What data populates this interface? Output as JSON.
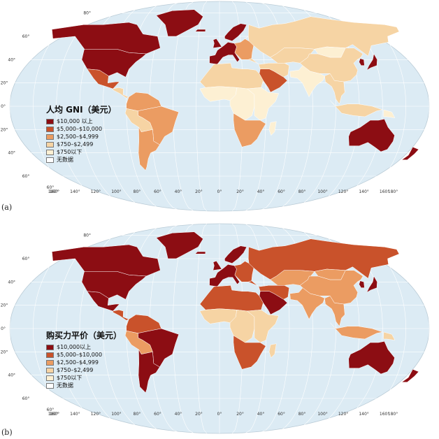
{
  "colors": {
    "ocean": "#dcebf4",
    "graticule": "#ffffff",
    "border": "#ffffff",
    "c10000": "#8c0d13",
    "c5000": "#c9522b",
    "c2500": "#eb9c62",
    "c750": "#f6d4a4",
    "clow": "#fdf0d3",
    "nodata": "#ffffff"
  },
  "panels": [
    {
      "id": "a",
      "label": "(a)",
      "legend_title": "人均 GNI（美元）",
      "legend": [
        {
          "label": "$10,000 以上",
          "color": "#8c0d13"
        },
        {
          "label": "$5,000–$10,000",
          "color": "#c9522b"
        },
        {
          "label": "$2,500–$4,999",
          "color": "#eb9c62"
        },
        {
          "label": "$750–$2,499",
          "color": "#f6d4a4"
        },
        {
          "label": "$750以下",
          "color": "#fdf0d3"
        },
        {
          "label": "无数据",
          "color": "#ffffff"
        }
      ],
      "regions": {
        "canada": "#8c0d13",
        "usa": "#8c0d13",
        "mexico": "#c9522b",
        "central_america": "#f6d4a4",
        "greenland": "#8c0d13",
        "south_america_north": "#eb9c62",
        "brazil": "#eb9c62",
        "peru_bolivia": "#f6d4a4",
        "argentina_chile": "#eb9c62",
        "iceland": "#8c0d13",
        "uk": "#8c0d13",
        "scandinavia": "#8c0d13",
        "western_europe": "#8c0d13",
        "eastern_europe": "#eb9c62",
        "russia": "#f6d4a4",
        "central_asia": "#f6d4a4",
        "middle_east": "#f6d4a4",
        "arabia": "#c9522b",
        "north_africa": "#f6d4a4",
        "west_africa": "#fdf0d3",
        "central_africa": "#fdf0d3",
        "east_africa": "#fdf0d3",
        "southern_africa": "#eb9c62",
        "madagascar": "#fdf0d3",
        "india": "#fdf0d3",
        "china": "#f6d4a4",
        "mongolia": "#fdf0d3",
        "southeast_asia": "#f6d4a4",
        "indonesia": "#f6d4a4",
        "japan": "#8c0d13",
        "korea": "#8c0d13",
        "australia": "#8c0d13",
        "new_zealand": "#8c0d13",
        "png": "#fdf0d3"
      }
    },
    {
      "id": "b",
      "label": "(b)",
      "legend_title": "购买力平价（美元）",
      "legend": [
        {
          "label": "$10,000以上",
          "color": "#8c0d13"
        },
        {
          "label": "$5,000–$10,000",
          "color": "#c9522b"
        },
        {
          "label": "$2,500–$4,999",
          "color": "#eb9c62"
        },
        {
          "label": "$750–$2,499",
          "color": "#f6d4a4"
        },
        {
          "label": "$750以下",
          "color": "#fdf0d3"
        },
        {
          "label": "无数据",
          "color": "#ffffff"
        }
      ],
      "regions": {
        "canada": "#8c0d13",
        "usa": "#8c0d13",
        "mexico": "#8c0d13",
        "central_america": "#c9522b",
        "greenland": "#8c0d13",
        "south_america_north": "#c9522b",
        "brazil": "#8c0d13",
        "peru_bolivia": "#eb9c62",
        "argentina_chile": "#8c0d13",
        "iceland": "#8c0d13",
        "uk": "#8c0d13",
        "scandinavia": "#8c0d13",
        "western_europe": "#8c0d13",
        "eastern_europe": "#c9522b",
        "russia": "#c9522b",
        "central_asia": "#eb9c62",
        "middle_east": "#c9522b",
        "arabia": "#8c0d13",
        "north_africa": "#c9522b",
        "west_africa": "#f6d4a4",
        "central_africa": "#f6d4a4",
        "east_africa": "#f6d4a4",
        "southern_africa": "#c9522b",
        "madagascar": "#f6d4a4",
        "india": "#eb9c62",
        "china": "#eb9c62",
        "mongolia": "#eb9c62",
        "southeast_asia": "#eb9c62",
        "indonesia": "#eb9c62",
        "japan": "#8c0d13",
        "korea": "#8c0d13",
        "australia": "#8c0d13",
        "new_zealand": "#8c0d13",
        "png": "#f6d4a4"
      }
    }
  ],
  "lat_ticks": [
    "80°",
    "60°",
    "40°",
    "20°",
    "0°",
    "20°",
    "40°",
    "60°"
  ],
  "lon_ticks": [
    "180°",
    "160°",
    "140°",
    "120°",
    "100°",
    "80°",
    "60°",
    "40°",
    "20°",
    "0°",
    "20°",
    "40°",
    "60°",
    "80°",
    "100°",
    "120°",
    "140°",
    "160°",
    "180°"
  ]
}
